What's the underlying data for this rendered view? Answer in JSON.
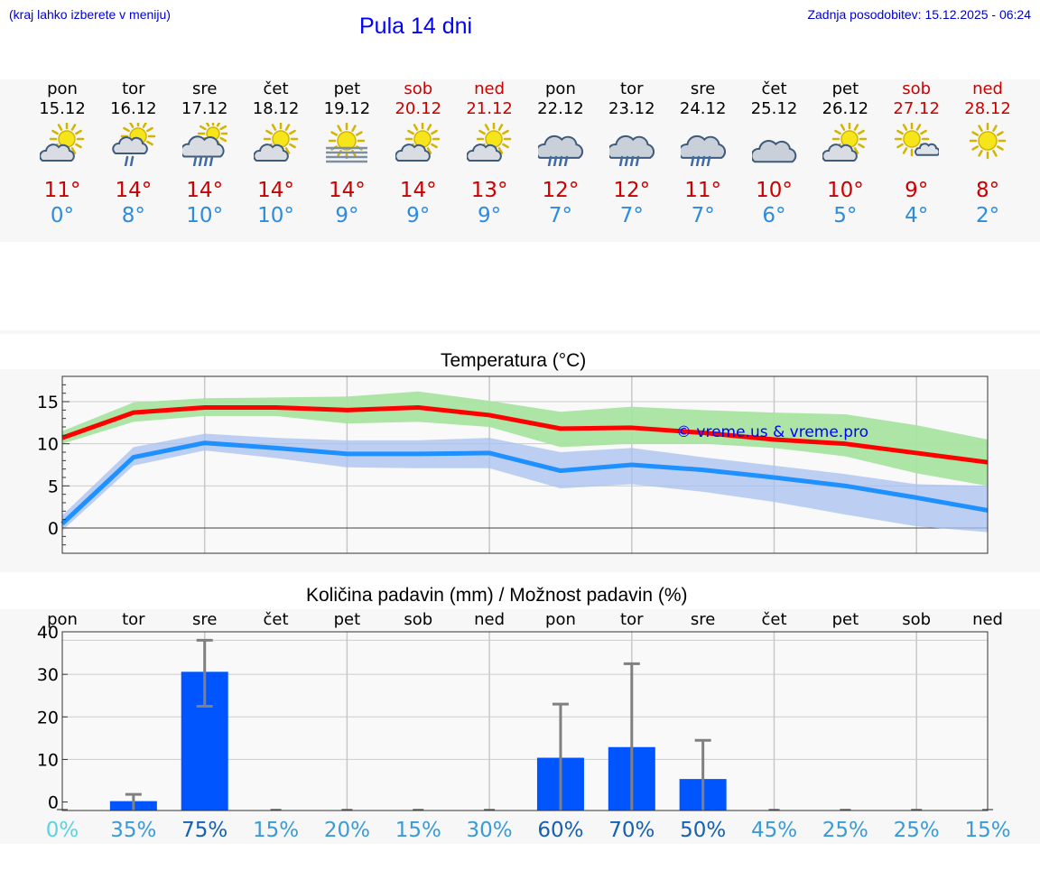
{
  "header": {
    "hint": "(kraj lahko izberete v meniju)",
    "title": "Pula 14 dni",
    "updated": "Zadnja posodobitev: 15.12.2025 - 06:24"
  },
  "forecast": [
    {
      "day": "pon",
      "date": "15.12",
      "icon": "partly-cloudy-sun-icon",
      "max": "11°",
      "min": "0°",
      "weekend": false
    },
    {
      "day": "tor",
      "date": "16.12",
      "icon": "sun-cloud-drizzle-icon",
      "max": "14°",
      "min": "8°",
      "weekend": false
    },
    {
      "day": "sre",
      "date": "17.12",
      "icon": "sun-cloud-rain-icon",
      "max": "14°",
      "min": "10°",
      "weekend": false
    },
    {
      "day": "čet",
      "date": "18.12",
      "icon": "partly-cloudy-sun-icon",
      "max": "14°",
      "min": "10°",
      "weekend": false
    },
    {
      "day": "pet",
      "date": "19.12",
      "icon": "sun-fog-icon",
      "max": "14°",
      "min": "9°",
      "weekend": false
    },
    {
      "day": "sob",
      "date": "20.12",
      "icon": "partly-cloudy-sun-icon",
      "max": "14°",
      "min": "9°",
      "weekend": true
    },
    {
      "day": "ned",
      "date": "21.12",
      "icon": "partly-cloudy-sun-icon",
      "max": "13°",
      "min": "9°",
      "weekend": true
    },
    {
      "day": "pon",
      "date": "22.12",
      "icon": "cloud-rain-icon",
      "max": "12°",
      "min": "7°",
      "weekend": false
    },
    {
      "day": "tor",
      "date": "23.12",
      "icon": "cloud-rain-icon",
      "max": "12°",
      "min": "7°",
      "weekend": false
    },
    {
      "day": "sre",
      "date": "24.12",
      "icon": "cloud-rain-icon",
      "max": "11°",
      "min": "7°",
      "weekend": false
    },
    {
      "day": "čet",
      "date": "25.12",
      "icon": "cloudy-icon",
      "max": "10°",
      "min": "6°",
      "weekend": false
    },
    {
      "day": "pet",
      "date": "26.12",
      "icon": "partly-cloudy-sun-icon",
      "max": "10°",
      "min": "5°",
      "weekend": false
    },
    {
      "day": "sob",
      "date": "27.12",
      "icon": "sun-small-cloud-icon",
      "max": "9°",
      "min": "4°",
      "weekend": true
    },
    {
      "day": "ned",
      "date": "28.12",
      "icon": "sun-icon",
      "max": "8°",
      "min": "2°",
      "weekend": true
    }
  ],
  "colors": {
    "max_line": "#ff0000",
    "min_line": "#1e90ff",
    "max_band": "#a8e4a0",
    "min_band": "#a7c0f0",
    "bar": "#0055ff",
    "errorbar": "#808080",
    "title_blue": "#0000ff"
  },
  "watermark": "© vreme.us & vreme.pro",
  "chart_data": [
    {
      "type": "line",
      "title": "Temperatura (°C)",
      "xlabel": "",
      "ylabel": "",
      "ylim": [
        -3,
        18
      ],
      "yticks": [
        0,
        5,
        10,
        15
      ],
      "x": [
        0,
        1,
        2,
        3,
        4,
        5,
        6,
        7,
        8,
        9,
        10,
        11,
        12,
        13
      ],
      "series": [
        {
          "name": "max",
          "values": [
            10.7,
            13.7,
            14.3,
            14.3,
            14.0,
            14.3,
            13.4,
            11.8,
            11.9,
            11.3,
            10.5,
            10.0,
            8.9,
            7.8
          ],
          "band_low": [
            10.0,
            12.6,
            13.3,
            13.3,
            12.4,
            12.6,
            12.0,
            9.6,
            10.0,
            10.0,
            9.5,
            8.5,
            6.5,
            5.0
          ],
          "band_high": [
            11.5,
            14.9,
            15.4,
            15.5,
            15.6,
            16.2,
            15.1,
            13.8,
            14.4,
            14.0,
            13.7,
            13.5,
            12.2,
            10.5
          ]
        },
        {
          "name": "min",
          "values": [
            0.5,
            8.4,
            10.1,
            9.5,
            8.8,
            8.8,
            8.9,
            6.8,
            7.5,
            6.9,
            6.0,
            5.0,
            3.6,
            2.1
          ],
          "band_low": [
            -0.3,
            7.4,
            9.2,
            8.3,
            7.2,
            7.1,
            7.1,
            4.7,
            5.2,
            4.3,
            3.1,
            1.6,
            0.2,
            -0.5
          ],
          "band_high": [
            1.5,
            9.6,
            11.2,
            10.7,
            10.4,
            10.4,
            10.7,
            9.0,
            9.5,
            8.4,
            7.4,
            6.4,
            5.2,
            5.0
          ]
        }
      ]
    },
    {
      "type": "bar",
      "title": "Količina padavin (mm) / Možnost padavin (%)",
      "ylim": [
        -2,
        40
      ],
      "yticks": [
        0,
        10,
        20,
        30,
        40
      ],
      "categories": [
        "pon",
        "tor",
        "sre",
        "čet",
        "pet",
        "sob",
        "ned",
        "pon",
        "tor",
        "sre",
        "čet",
        "pet",
        "sob",
        "ned"
      ],
      "values": [
        0,
        0.2,
        30.6,
        0,
        0,
        0,
        0,
        10.4,
        12.9,
        5.4,
        0,
        0,
        0,
        0
      ],
      "error_low": [
        0,
        0,
        22.5,
        0,
        0,
        0,
        0,
        0,
        0,
        0,
        0,
        0,
        0,
        0
      ],
      "error_high": [
        0,
        1.8,
        38.0,
        0,
        0,
        0,
        0,
        23.0,
        32.5,
        14.5,
        0,
        0,
        0,
        0
      ],
      "probability": [
        "0%",
        "35%",
        "75%",
        "15%",
        "20%",
        "15%",
        "30%",
        "60%",
        "70%",
        "50%",
        "45%",
        "25%",
        "25%",
        "15%"
      ],
      "probability_colors": [
        "#5bd3e3",
        "#3a9bd5",
        "#1560b0",
        "#3a9bd5",
        "#3a9bd5",
        "#3a9bd5",
        "#3a9bd5",
        "#1560b0",
        "#1560b0",
        "#1560b0",
        "#3a9bd5",
        "#3a9bd5",
        "#3a9bd5",
        "#3a9bd5"
      ]
    }
  ]
}
